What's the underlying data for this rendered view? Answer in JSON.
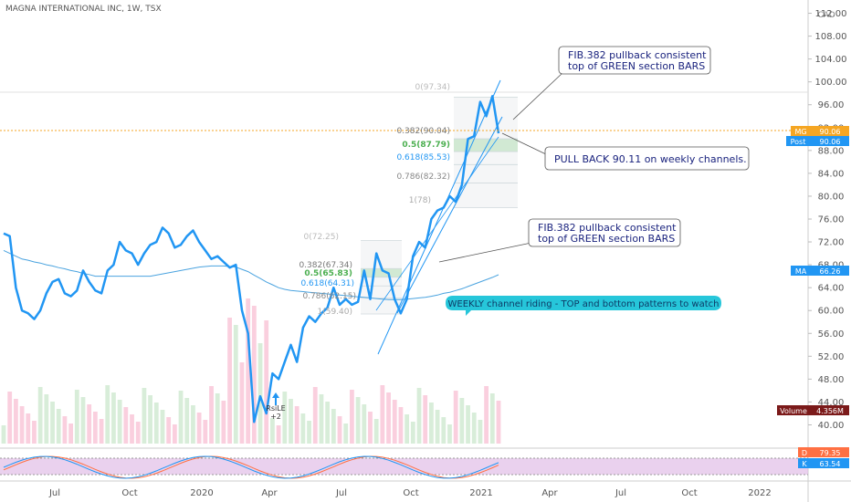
{
  "header": {
    "symbol_line": "MAGNA INTERNATIONAL INC, 1W, TSX",
    "currency": "CAD"
  },
  "price_axis": {
    "ticks": [
      "112.00",
      "108.00",
      "104.00",
      "100.00",
      "96.00",
      "92.00",
      "88.00",
      "84.00",
      "80.00",
      "76.00",
      "72.00",
      "68.00",
      "64.00",
      "60.00",
      "56.00",
      "52.00",
      "48.00",
      "44.00",
      "40.00"
    ]
  },
  "time_axis": {
    "ticks": [
      "Jul",
      "Oct",
      "2020",
      "Apr",
      "Jul",
      "Oct",
      "2021",
      "Apr",
      "Jul",
      "Oct",
      "2022"
    ]
  },
  "badges": {
    "mg_label": "MG",
    "mg_value": "90.06",
    "post_label": "Post",
    "post_value": "90.06",
    "ma_label": "MA",
    "ma_value": "66.26",
    "volume_label": "Volume",
    "volume_value": "4.356M",
    "d_label": "D",
    "d_value": "79.35",
    "k_label": "K",
    "k_value": "63.54"
  },
  "fib_upper": {
    "f0": "0(97.34)",
    "f382": "0.382(90.04)",
    "f5": "0.5(87.79)",
    "f618": "0.618(85.53)",
    "f786": "0.786(82.32)",
    "f1": "1(78)"
  },
  "fib_lower": {
    "f0": "0(72.25)",
    "f382": "0.382(67.34)",
    "f5": "0.5(65.83)",
    "f618": "0.618(64.31)",
    "f786": "0.786(62.15)",
    "f1": "1(59.40)"
  },
  "annotations": {
    "callout1_line1": "FIB.382 pullback consistent",
    "callout1_line2": "top of GREEN section BARS",
    "callout2": "PULL BACK 90.11 on weekly channels.",
    "callout3_line1": "FIB.382 pullback consistent",
    "callout3_line2": "top of GREEN section BARS",
    "banner": "WEEKLY channel riding - TOP and bottom patterns to watch",
    "signal_name": "RsiLE",
    "signal_value": "+2"
  },
  "colors": {
    "price_line": "#2196f3",
    "ma_line": "#4aa3df",
    "green_band": "#c8e6c9",
    "stoch_band": "#e1bee7",
    "mg_badge": "#f5a623",
    "post_badge": "#2196f3",
    "volume_badge": "#7b1a1a",
    "d_badge": "#ff7043",
    "k_badge": "#2196f3",
    "banner_bg": "#26c6da"
  },
  "chart_data": {
    "type": "line",
    "title": "MAGNA INTERNATIONAL INC, 1W, TSX",
    "ylim": [
      38,
      114
    ],
    "x_ticks": [
      "Jul",
      "Oct",
      "2020",
      "Apr",
      "Jul",
      "Oct",
      "2021",
      "Apr",
      "Jul",
      "Oct",
      "2022"
    ],
    "series": [
      {
        "values": [
          73.5,
          73,
          64,
          60,
          59.5,
          58.5,
          60,
          63,
          65,
          65.5,
          63,
          62.5,
          63.5,
          67,
          65,
          63.5,
          63,
          67,
          68,
          72,
          70.5,
          70,
          68,
          70,
          71.5,
          72,
          74.5,
          73.5,
          71,
          71.5,
          73,
          74,
          72,
          70.5,
          69,
          69.5,
          68.5,
          67.5,
          68,
          60,
          56,
          40.5,
          45,
          42,
          49,
          48,
          51,
          54,
          51,
          57,
          59,
          58,
          59.5,
          60.5,
          64,
          61,
          62,
          61,
          61.5,
          67,
          62,
          70,
          67,
          66.5,
          62,
          59.5,
          62,
          69.5,
          72,
          71,
          76,
          77.5,
          78,
          80,
          79,
          82,
          90,
          90.5,
          96.5,
          94,
          97.5,
          91
        ]
      },
      {
        "name": "MA",
        "values": [
          70.5,
          70,
          69.5,
          69,
          68.8,
          68.5,
          68.3,
          68,
          67.8,
          67.5,
          67.3,
          67,
          66.8,
          66.5,
          66.3,
          66,
          66,
          66,
          66,
          66,
          66,
          66,
          66,
          66,
          66,
          66.2,
          66.4,
          66.6,
          66.8,
          67,
          67.2,
          67.4,
          67.6,
          67.7,
          67.8,
          67.8,
          67.8,
          67.7,
          67.6,
          67.2,
          66.8,
          66.2,
          65.6,
          65,
          64.5,
          64,
          63.7,
          63.5,
          63.4,
          63.3,
          63.2,
          63.1,
          63,
          62.9,
          62.8,
          62.7,
          62.6,
          62.5,
          62.4,
          62.3,
          62.2,
          62.1,
          62,
          61.9,
          61.9,
          61.9,
          62,
          62.1,
          62.2,
          62.3,
          62.5,
          62.7,
          63,
          63.2,
          63.5,
          63.8,
          64.2,
          64.6,
          65,
          65.4,
          65.8,
          66.26
        ]
      }
    ],
    "volume": {
      "label": "Volume",
      "last": "4.356M"
    },
    "stochastic": {
      "D": 79.35,
      "K": 63.54
    },
    "fib_levels_upper": [
      97.34,
      90.04,
      87.79,
      85.53,
      82.32,
      78
    ],
    "fib_levels_lower": [
      72.25,
      67.34,
      65.83,
      64.31,
      62.15,
      59.4
    ]
  }
}
